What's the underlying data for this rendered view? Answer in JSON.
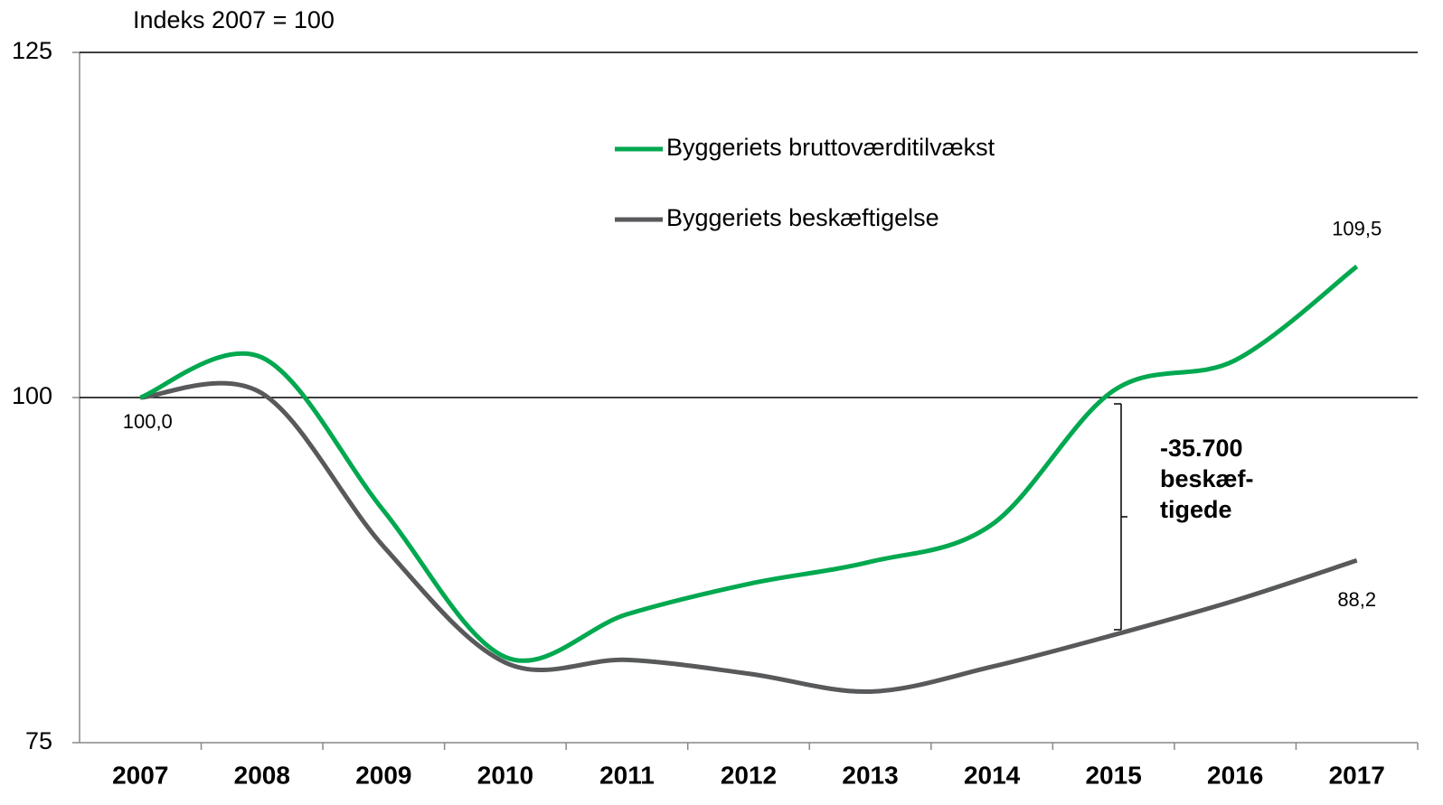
{
  "chart_data": {
    "type": "line",
    "y_axis_label": "Indeks 2007 = 100",
    "categories": [
      "2007",
      "2008",
      "2009",
      "2010",
      "2011",
      "2012",
      "2013",
      "2014",
      "2015",
      "2016",
      "2017"
    ],
    "series": [
      {
        "name": "Byggeriets bruttoværditilvækst",
        "color": "#00a84f",
        "values": [
          100,
          102.9,
          91.8,
          81.2,
          84.3,
          86.5,
          88.1,
          90.8,
          100.5,
          102.7,
          109.5
        ],
        "value_labels": [
          "100,0",
          null,
          null,
          null,
          null,
          null,
          null,
          null,
          null,
          null,
          "109,5"
        ]
      },
      {
        "name": "Byggeriets beskæftigelse",
        "color": "#58595b",
        "values": [
          100,
          100.3,
          89.2,
          80.8,
          81.0,
          80.0,
          78.7,
          80.5,
          82.8,
          85.3,
          88.2
        ],
        "value_labels": [
          null,
          null,
          null,
          null,
          null,
          null,
          null,
          null,
          null,
          null,
          "88,2"
        ]
      }
    ],
    "annotation": [
      "-35.700",
      "beskæf-",
      "tigede"
    ],
    "ylim": [
      75,
      125
    ],
    "yticks": [
      75,
      100,
      125
    ],
    "grid": true,
    "legend": "top"
  }
}
